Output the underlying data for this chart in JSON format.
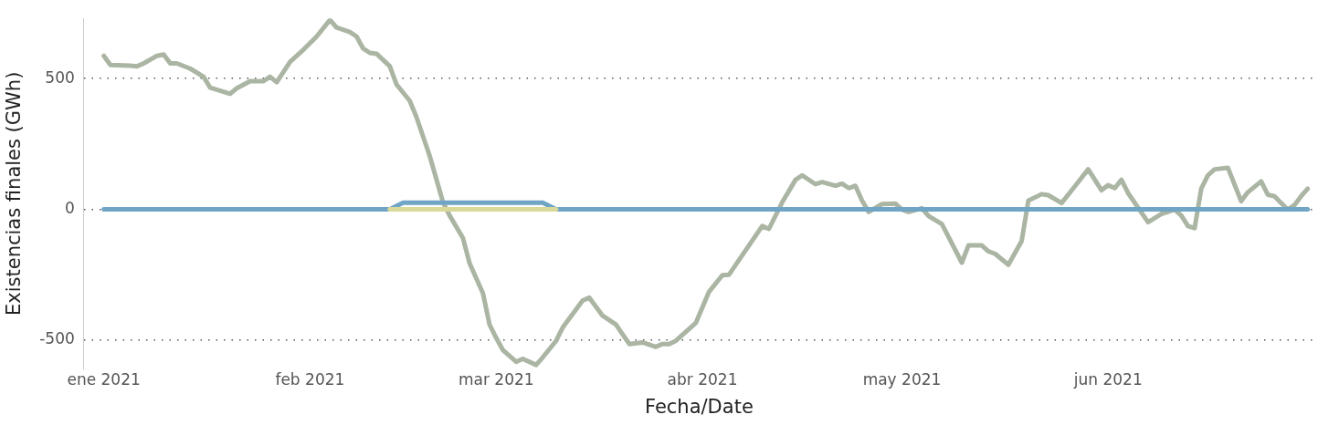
{
  "chart_data": {
    "type": "line",
    "xlabel": "Fecha/Date",
    "ylabel": "Existencias finales (GWh)",
    "xlim": [
      "2020-12-29",
      "2021-07-02"
    ],
    "xticks": [
      {
        "value": "2021-01-01",
        "label": "ene 2021"
      },
      {
        "value": "2021-02-01",
        "label": "feb 2021"
      },
      {
        "value": "2021-03-01",
        "label": "mar 2021"
      },
      {
        "value": "2021-04-01",
        "label": "abr 2021"
      },
      {
        "value": "2021-05-01",
        "label": "may 2021"
      },
      {
        "value": "2021-06-01",
        "label": "jun 2021"
      }
    ],
    "ylim": [
      -610,
      730
    ],
    "yticks": [
      -500,
      0,
      500
    ],
    "grid": "y",
    "line_style": "solid",
    "marker": "none",
    "series": [
      {
        "color": "#d9d99a",
        "x": [
          "2021-02-13",
          "2021-03-10"
        ],
        "values": [
          0,
          0
        ]
      },
      {
        "color": "#71a5c6",
        "x": [
          "2021-01-01",
          "2021-02-13",
          "2021-02-15",
          "2021-03-08",
          "2021-03-10",
          "2021-07-01"
        ],
        "values": [
          0,
          0,
          25,
          25,
          0,
          0
        ]
      },
      {
        "color": "#abb5a3",
        "x": [
          "2021-01-01",
          "2021-01-02",
          "2021-01-05",
          "2021-01-06",
          "2021-01-07",
          "2021-01-09",
          "2021-01-10",
          "2021-01-11",
          "2021-01-12",
          "2021-01-14",
          "2021-01-16",
          "2021-01-17",
          "2021-01-20",
          "2021-01-21",
          "2021-01-23",
          "2021-01-25",
          "2021-01-26",
          "2021-01-27",
          "2021-01-29",
          "2021-01-31",
          "2021-02-02",
          "2021-02-04",
          "2021-02-05",
          "2021-02-07",
          "2021-02-08",
          "2021-02-09",
          "2021-02-10",
          "2021-02-11",
          "2021-02-13",
          "2021-02-14",
          "2021-02-16",
          "2021-02-17",
          "2021-02-19",
          "2021-02-21",
          "2021-02-22",
          "2021-02-24",
          "2021-02-25",
          "2021-02-27",
          "2021-02-28",
          "2021-03-01",
          "2021-03-02",
          "2021-03-04",
          "2021-03-05",
          "2021-03-07",
          "2021-03-08",
          "2021-03-10",
          "2021-03-11",
          "2021-03-14",
          "2021-03-15",
          "2021-03-17",
          "2021-03-19",
          "2021-03-21",
          "2021-03-23",
          "2021-03-25",
          "2021-03-26",
          "2021-03-27",
          "2021-03-28",
          "2021-03-31",
          "2021-04-02",
          "2021-04-04",
          "2021-04-05",
          "2021-04-08",
          "2021-04-10",
          "2021-04-11",
          "2021-04-13",
          "2021-04-15",
          "2021-04-16",
          "2021-04-18",
          "2021-04-19",
          "2021-04-21",
          "2021-04-22",
          "2021-04-23",
          "2021-04-24",
          "2021-04-25",
          "2021-04-26",
          "2021-04-28",
          "2021-04-30",
          "2021-05-01",
          "2021-05-02",
          "2021-05-04",
          "2021-05-05",
          "2021-05-07",
          "2021-05-10",
          "2021-05-11",
          "2021-05-13",
          "2021-05-14",
          "2021-05-15",
          "2021-05-17",
          "2021-05-19",
          "2021-05-20",
          "2021-05-22",
          "2021-05-23",
          "2021-05-25",
          "2021-05-27",
          "2021-05-29",
          "2021-05-31",
          "2021-06-01",
          "2021-06-02",
          "2021-06-03",
          "2021-06-04",
          "2021-06-07",
          "2021-06-09",
          "2021-06-11",
          "2021-06-12",
          "2021-06-13",
          "2021-06-14",
          "2021-06-15",
          "2021-06-16",
          "2021-06-17",
          "2021-06-19",
          "2021-06-21",
          "2021-06-22",
          "2021-06-24",
          "2021-06-25",
          "2021-06-26",
          "2021-06-28",
          "2021-06-29",
          "2021-06-30",
          "2021-07-01"
        ],
        "values": [
          587,
          552,
          549,
          547,
          558,
          587,
          592,
          558,
          558,
          538,
          507,
          465,
          442,
          463,
          490,
          490,
          507,
          486,
          564,
          610,
          661,
          724,
          695,
          678,
          661,
          615,
          598,
          595,
          547,
          478,
          415,
          353,
          204,
          27,
          -24,
          -110,
          -207,
          -321,
          -441,
          -492,
          -538,
          -583,
          -572,
          -595,
          -566,
          -503,
          -452,
          -349,
          -338,
          -407,
          -441,
          -515,
          -509,
          -526,
          -515,
          -515,
          -503,
          -435,
          -315,
          -252,
          -250,
          -138,
          -64,
          -75,
          27,
          113,
          130,
          96,
          104,
          90,
          98,
          81,
          90,
          33,
          -10,
          20,
          22,
          -1,
          -10,
          4,
          -26,
          -56,
          -204,
          -138,
          -138,
          -161,
          -170,
          -212,
          -121,
          33,
          58,
          54,
          24,
          88,
          153,
          73,
          92,
          81,
          113,
          62,
          -49,
          -18,
          -1,
          -24,
          -64,
          -72,
          79,
          130,
          153,
          159,
          31,
          65,
          107,
          56,
          50,
          -1,
          16,
          50,
          79
        ]
      }
    ]
  }
}
